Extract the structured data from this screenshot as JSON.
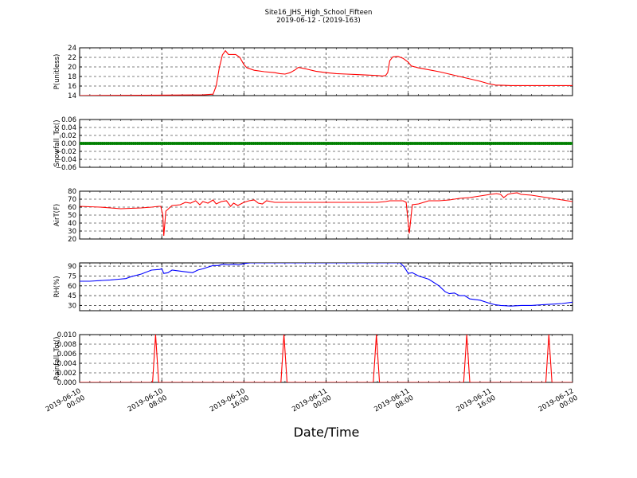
{
  "chart_data": {
    "type": "line",
    "title": "Site16_JHS_High_School_Fifteen",
    "subtitle": "2019-06-12 - (2019-163)",
    "xlabel": "Date/Time",
    "x_ticks": [
      {
        "hours": 0,
        "line1": "2019-06-10",
        "line2": "00:00"
      },
      {
        "hours": 8,
        "line1": "2019-06-10",
        "line2": "08:00"
      },
      {
        "hours": 16,
        "line1": "2019-06-10",
        "line2": "16:00"
      },
      {
        "hours": 24,
        "line1": "2019-06-11",
        "line2": "00:00"
      },
      {
        "hours": 32,
        "line1": "2019-06-11",
        "line2": "08:00"
      },
      {
        "hours": 40,
        "line1": "2019-06-11",
        "line2": "16:00"
      },
      {
        "hours": 48,
        "line1": "2019-06-12",
        "line2": "00:00"
      }
    ],
    "xlim": [
      0,
      48
    ],
    "grid": true,
    "panels": [
      {
        "ylabel": "P(unitless)",
        "ylim": [
          14,
          24
        ],
        "yticks": [
          "14",
          "16",
          "18",
          "20",
          "22",
          "24"
        ],
        "color": "#ff0000",
        "series": [
          [
            0,
            14
          ],
          [
            4,
            14.05
          ],
          [
            8,
            14.1
          ],
          [
            12,
            14.15
          ],
          [
            13,
            14.3
          ],
          [
            13.3,
            16
          ],
          [
            13.6,
            19.8
          ],
          [
            13.9,
            22.5
          ],
          [
            14.2,
            23.4
          ],
          [
            14.5,
            22.6
          ],
          [
            15.2,
            22.6
          ],
          [
            15.6,
            22
          ],
          [
            16,
            20.5
          ],
          [
            16.3,
            19.8
          ],
          [
            17,
            19.3
          ],
          [
            18,
            19
          ],
          [
            19,
            18.8
          ],
          [
            19.5,
            18.6
          ],
          [
            20,
            18.5
          ],
          [
            20.5,
            18.8
          ],
          [
            21,
            19.4
          ],
          [
            21.3,
            19.9
          ],
          [
            22,
            19.6
          ],
          [
            23,
            19.1
          ],
          [
            24,
            18.8
          ],
          [
            25,
            18.6
          ],
          [
            26,
            18.5
          ],
          [
            27,
            18.4
          ],
          [
            28,
            18.3
          ],
          [
            29,
            18.2
          ],
          [
            29.5,
            18.1
          ],
          [
            29.8,
            18.2
          ],
          [
            30,
            18.8
          ],
          [
            30.2,
            21.3
          ],
          [
            30.5,
            22.1
          ],
          [
            31,
            22.2
          ],
          [
            31.5,
            21.8
          ],
          [
            32,
            21
          ],
          [
            32.3,
            20.2
          ],
          [
            33,
            19.8
          ],
          [
            34,
            19.4
          ],
          [
            35,
            19
          ],
          [
            36,
            18.5
          ],
          [
            37,
            18
          ],
          [
            38,
            17.5
          ],
          [
            39,
            17
          ],
          [
            39.8,
            16.5
          ],
          [
            40.5,
            16.2
          ],
          [
            42,
            16.1
          ],
          [
            44,
            16.1
          ],
          [
            46,
            16.1
          ],
          [
            48,
            16.1
          ]
        ]
      },
      {
        "ylabel": "Snowfall_Tot()",
        "ylim": [
          -0.06,
          0.06
        ],
        "yticks": [
          "−0.06",
          "−0.04",
          "−0.02",
          "0.00",
          "0.02",
          "0.04",
          "0.06"
        ],
        "color": "#008000",
        "marker": true,
        "series": [
          [
            0,
            0
          ],
          [
            48,
            0
          ]
        ]
      },
      {
        "ylabel": "AirT(F)",
        "ylim": [
          20,
          80
        ],
        "yticks": [
          "20",
          "30",
          "40",
          "50",
          "60",
          "70",
          "80"
        ],
        "color": "#ff0000",
        "series": [
          [
            0,
            61
          ],
          [
            2,
            60
          ],
          [
            3,
            59
          ],
          [
            4,
            58
          ],
          [
            5,
            58.5
          ],
          [
            6,
            59
          ],
          [
            7,
            60
          ],
          [
            7.7,
            61
          ],
          [
            7.9,
            61
          ],
          [
            8.1,
            50
          ],
          [
            8.2,
            24
          ],
          [
            8.4,
            55
          ],
          [
            9,
            62
          ],
          [
            9.8,
            63
          ],
          [
            10.3,
            66
          ],
          [
            10.8,
            65
          ],
          [
            11.3,
            68
          ],
          [
            11.7,
            63
          ],
          [
            12,
            67
          ],
          [
            12.5,
            65
          ],
          [
            13,
            69
          ],
          [
            13.3,
            64
          ],
          [
            13.8,
            67
          ],
          [
            14.3,
            68
          ],
          [
            14.7,
            61
          ],
          [
            15,
            65
          ],
          [
            15.4,
            62
          ],
          [
            16,
            66
          ],
          [
            16.5,
            68
          ],
          [
            17,
            69
          ],
          [
            17.4,
            65
          ],
          [
            17.8,
            64
          ],
          [
            18.2,
            68
          ],
          [
            18.6,
            67
          ],
          [
            19,
            66
          ],
          [
            20,
            66
          ],
          [
            22,
            66
          ],
          [
            24,
            66
          ],
          [
            26,
            66
          ],
          [
            28,
            66
          ],
          [
            29,
            66
          ],
          [
            29.8,
            67
          ],
          [
            30.2,
            68
          ],
          [
            31,
            68
          ],
          [
            31.5,
            68
          ],
          [
            31.8,
            66
          ],
          [
            32.1,
            27
          ],
          [
            32.4,
            63
          ],
          [
            33,
            64
          ],
          [
            34,
            68
          ],
          [
            35,
            68
          ],
          [
            36,
            69
          ],
          [
            37,
            71
          ],
          [
            38,
            72
          ],
          [
            39,
            74
          ],
          [
            40,
            76
          ],
          [
            40.6,
            77
          ],
          [
            41,
            76
          ],
          [
            41.3,
            72
          ],
          [
            41.7,
            76
          ],
          [
            42,
            77
          ],
          [
            42.6,
            78
          ],
          [
            43,
            76
          ],
          [
            44,
            75
          ],
          [
            45,
            73
          ],
          [
            46,
            71
          ],
          [
            47,
            69
          ],
          [
            48,
            67
          ]
        ]
      },
      {
        "ylabel": "RH(%)",
        "ylim": [
          22,
          95
        ],
        "yticks": [
          "30",
          "45",
          "60",
          "75",
          "90"
        ],
        "color": "#0000ff",
        "series": [
          [
            0,
            67
          ],
          [
            1,
            67
          ],
          [
            2,
            68
          ],
          [
            3,
            69
          ],
          [
            3.8,
            70
          ],
          [
            4.5,
            71
          ],
          [
            5,
            74
          ],
          [
            6,
            78
          ],
          [
            7,
            84
          ],
          [
            7.8,
            85
          ],
          [
            8,
            86
          ],
          [
            8.2,
            79
          ],
          [
            8.6,
            80
          ],
          [
            9,
            84
          ],
          [
            10,
            82
          ],
          [
            11,
            80
          ],
          [
            11.5,
            84
          ],
          [
            12,
            86
          ],
          [
            12.6,
            89
          ],
          [
            13,
            91
          ],
          [
            13.5,
            91
          ],
          [
            14,
            93
          ],
          [
            14.5,
            92
          ],
          [
            15,
            93
          ],
          [
            15.5,
            92
          ],
          [
            16,
            94
          ],
          [
            16.6,
            95
          ],
          [
            31.2,
            95
          ],
          [
            31.6,
            89
          ],
          [
            32,
            79
          ],
          [
            32.4,
            80
          ],
          [
            33,
            75
          ],
          [
            34,
            70
          ],
          [
            35,
            60
          ],
          [
            35.6,
            51
          ],
          [
            36,
            48
          ],
          [
            36.5,
            49
          ],
          [
            37,
            45
          ],
          [
            37.5,
            45
          ],
          [
            38,
            40
          ],
          [
            39,
            38
          ],
          [
            40,
            33
          ],
          [
            40.5,
            31
          ],
          [
            41,
            30
          ],
          [
            42,
            29
          ],
          [
            43,
            30
          ],
          [
            44,
            30
          ],
          [
            45,
            31
          ],
          [
            46,
            32
          ],
          [
            47,
            33
          ],
          [
            48,
            35
          ]
        ]
      },
      {
        "ylabel": "Rainfall_Tot()",
        "ylim": [
          0,
          0.01
        ],
        "yticks": [
          "0.000",
          "0.002",
          "0.004",
          "0.006",
          "0.008",
          "0.010"
        ],
        "color": "#ff0000",
        "series": [
          [
            0,
            0
          ],
          [
            7.1,
            0
          ],
          [
            7.4,
            0.01
          ],
          [
            7.7,
            0
          ],
          [
            19.6,
            0
          ],
          [
            19.9,
            0.01
          ],
          [
            20.2,
            0
          ],
          [
            28.6,
            0
          ],
          [
            28.9,
            0.01
          ],
          [
            29.2,
            0
          ],
          [
            37.4,
            0
          ],
          [
            37.7,
            0.01
          ],
          [
            38,
            0
          ],
          [
            45.4,
            0
          ],
          [
            45.7,
            0.01
          ],
          [
            46,
            0
          ],
          [
            48,
            0
          ]
        ]
      }
    ]
  }
}
